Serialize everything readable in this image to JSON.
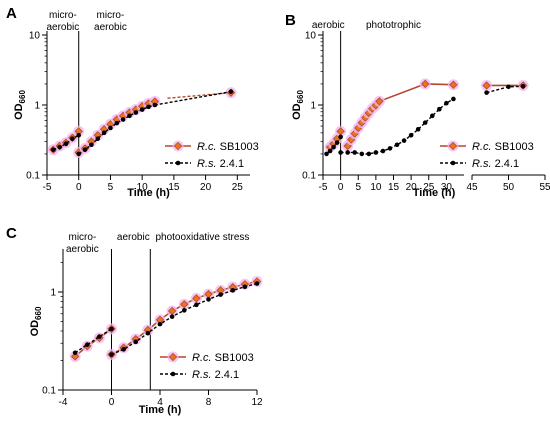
{
  "colors": {
    "rc_line": "#b5462b",
    "rc_marker": "#e8741f",
    "rc_halo": "#f2b8f0",
    "rs": "#000000",
    "axis": "#000000"
  },
  "chart_data": [
    {
      "panel": "A",
      "type": "line",
      "ylabel": "OD",
      "ylabel_sub": "660",
      "xlabel": "Time (h)",
      "yscale": "log",
      "ylim": [
        0.1,
        10
      ],
      "yticks": [
        0.1,
        1,
        10
      ],
      "ytick_labels": [
        "0.1",
        "1",
        "10"
      ],
      "xlim": [
        -5,
        27
      ],
      "xticks": [
        -5,
        0,
        5,
        10,
        15,
        20,
        25
      ],
      "xtick_labels": [
        "-5",
        "0",
        "5",
        "10",
        "15",
        "20",
        "25"
      ],
      "vlines": [
        0
      ],
      "annotations": [
        {
          "text_lines": [
            "micro-",
            "aerobic"
          ],
          "x": -2.5
        },
        {
          "text_lines": [
            "micro-",
            "aerobic"
          ],
          "x": 5
        }
      ],
      "series": [
        {
          "name": "R.c.",
          "name_suffix": "SB1003",
          "style": "rc",
          "segments": [
            [
              [
                -4,
                0.23
              ],
              [
                -3,
                0.26
              ],
              [
                -2,
                0.29
              ],
              [
                -1,
                0.34
              ],
              [
                0,
                0.42
              ]
            ],
            [
              [
                0,
                0.21
              ],
              [
                1,
                0.24
              ],
              [
                2,
                0.3
              ],
              [
                3,
                0.37
              ],
              [
                4,
                0.45
              ],
              [
                5,
                0.53
              ],
              [
                6,
                0.62
              ],
              [
                7,
                0.7
              ],
              [
                8,
                0.78
              ],
              [
                9,
                0.86
              ],
              [
                10,
                0.96
              ],
              [
                11,
                1.05
              ],
              [
                12,
                1.12
              ]
            ],
            [
              [
                24,
                1.5
              ]
            ]
          ],
          "dashed": [
            [
              [
                14,
                1.25
              ],
              [
                24,
                1.5
              ]
            ]
          ]
        },
        {
          "name": "R.s.",
          "name_suffix": "2.4.1",
          "style": "rs",
          "segments": [
            [
              [
                -4,
                0.23
              ],
              [
                -3,
                0.25
              ],
              [
                -2,
                0.28
              ],
              [
                -1,
                0.33
              ],
              [
                0,
                0.37
              ]
            ],
            [
              [
                0,
                0.2
              ],
              [
                1,
                0.23
              ],
              [
                2,
                0.27
              ],
              [
                3,
                0.33
              ],
              [
                4,
                0.4
              ],
              [
                5,
                0.47
              ],
              [
                6,
                0.55
              ],
              [
                7,
                0.62
              ],
              [
                8,
                0.7
              ],
              [
                9,
                0.78
              ],
              [
                10,
                0.86
              ],
              [
                11,
                0.94
              ],
              [
                12,
                1.0
              ]
            ],
            [
              [
                24,
                1.55
              ]
            ]
          ],
          "dashed": [
            [
              [
                12,
                1.0
              ],
              [
                24,
                1.55
              ]
            ]
          ]
        }
      ]
    },
    {
      "panel": "B",
      "type": "line",
      "ylabel": "OD",
      "ylabel_sub": "660",
      "xlabel": "Time (h)",
      "yscale": "log",
      "ylim": [
        0.1,
        10
      ],
      "yticks": [
        0.1,
        1,
        10
      ],
      "ytick_labels": [
        "0.1",
        "1",
        "10"
      ],
      "xaxis_break": true,
      "xlim_left": [
        -5,
        35
      ],
      "xlim_right": [
        45,
        55
      ],
      "xticks": [
        -5,
        0,
        5,
        10,
        15,
        20,
        25,
        30,
        45,
        50,
        55
      ],
      "xtick_labels": [
        "-5",
        "0",
        "5",
        "10",
        "15",
        "20",
        "25",
        "30",
        "45",
        "50",
        "55"
      ],
      "vlines": [
        0
      ],
      "annotations": [
        {
          "text_lines": [
            "aerobic"
          ],
          "x": -3.5
        },
        {
          "text_lines": [
            "phototrophic"
          ],
          "x": 15
        }
      ],
      "series": [
        {
          "name": "R.c.",
          "name_suffix": "SB1003",
          "style": "rc",
          "segments": [
            [
              [
                -3,
                0.25
              ],
              [
                -2,
                0.28
              ],
              [
                -1,
                0.33
              ],
              [
                0,
                0.42
              ]
            ],
            [
              [
                2,
                0.26
              ],
              [
                3,
                0.32
              ],
              [
                4,
                0.39
              ],
              [
                5,
                0.47
              ],
              [
                6,
                0.56
              ],
              [
                7,
                0.66
              ],
              [
                8,
                0.77
              ],
              [
                9,
                0.89
              ],
              [
                10,
                0.99
              ],
              [
                11,
                1.13
              ],
              [
                24,
                2.0
              ],
              [
                32,
                1.95
              ]
            ],
            [
              [
                47,
                1.9
              ],
              [
                52,
                1.9
              ]
            ]
          ],
          "dashed": []
        },
        {
          "name": "R.s.",
          "name_suffix": "2.4.1",
          "style": "rs",
          "segments": [
            [
              [
                -4,
                0.2
              ],
              [
                -3,
                0.22
              ],
              [
                -2,
                0.25
              ],
              [
                -1,
                0.29
              ],
              [
                0,
                0.35
              ]
            ],
            [
              [
                0,
                0.21
              ],
              [
                2,
                0.21
              ],
              [
                4,
                0.21
              ],
              [
                6,
                0.2
              ],
              [
                8,
                0.2
              ],
              [
                10,
                0.21
              ],
              [
                12,
                0.22
              ],
              [
                14,
                0.24
              ],
              [
                16,
                0.27
              ],
              [
                18,
                0.31
              ],
              [
                20,
                0.37
              ],
              [
                22,
                0.45
              ],
              [
                24,
                0.56
              ],
              [
                26,
                0.7
              ],
              [
                28,
                0.87
              ],
              [
                30,
                1.06
              ],
              [
                32,
                1.22
              ]
            ],
            [
              [
                47,
                1.5
              ],
              [
                50,
                1.82
              ],
              [
                52,
                1.85
              ]
            ]
          ],
          "dashed": []
        }
      ]
    },
    {
      "panel": "C",
      "type": "line",
      "ylabel": "OD",
      "ylabel_sub": "660",
      "xlabel": "Time (h)",
      "yscale": "log",
      "ylim": [
        0.1,
        2.5
      ],
      "yticks": [
        0.1,
        1
      ],
      "ytick_labels": [
        "0.1",
        "1"
      ],
      "xlim": [
        -4,
        12
      ],
      "xticks": [
        -4,
        0,
        4,
        8,
        12
      ],
      "xtick_labels": [
        "-4",
        "0",
        "4",
        "8",
        "12"
      ],
      "vlines": [
        0,
        3.2
      ],
      "annotations": [
        {
          "text_lines": [
            "micro-",
            "aerobic"
          ],
          "x": -2.4
        },
        {
          "text_lines": [
            "aerobic"
          ],
          "x": 1.8
        },
        {
          "text_lines": [
            "photooxidative stress"
          ],
          "x": 7.5
        }
      ],
      "series": [
        {
          "name": "R.c.",
          "name_suffix": "SB1003",
          "style": "rc",
          "segments": [
            [
              [
                -3,
                0.22
              ],
              [
                -2,
                0.28
              ],
              [
                -1,
                0.34
              ],
              [
                0,
                0.42
              ]
            ],
            [
              [
                0,
                0.23
              ],
              [
                1,
                0.27
              ],
              [
                2,
                0.33
              ],
              [
                3,
                0.41
              ],
              [
                4,
                0.52
              ],
              [
                5,
                0.64
              ],
              [
                6,
                0.75
              ],
              [
                7,
                0.86
              ],
              [
                8,
                0.95
              ],
              [
                9,
                1.04
              ],
              [
                10,
                1.12
              ],
              [
                11,
                1.2
              ],
              [
                12,
                1.28
              ]
            ]
          ],
          "dashed": []
        },
        {
          "name": "R.s.",
          "name_suffix": "2.4.1",
          "style": "rs",
          "segments": [
            [
              [
                -3,
                0.24
              ],
              [
                -2,
                0.29
              ],
              [
                -1,
                0.35
              ],
              [
                0,
                0.42
              ]
            ],
            [
              [
                0,
                0.23
              ],
              [
                1,
                0.26
              ],
              [
                2,
                0.31
              ],
              [
                3,
                0.38
              ],
              [
                4,
                0.47
              ],
              [
                5,
                0.56
              ],
              [
                6,
                0.65
              ],
              [
                7,
                0.74
              ],
              [
                8,
                0.84
              ],
              [
                9,
                0.94
              ],
              [
                10,
                1.04
              ],
              [
                11,
                1.13
              ],
              [
                12,
                1.22
              ]
            ]
          ],
          "dashed": []
        }
      ]
    }
  ]
}
